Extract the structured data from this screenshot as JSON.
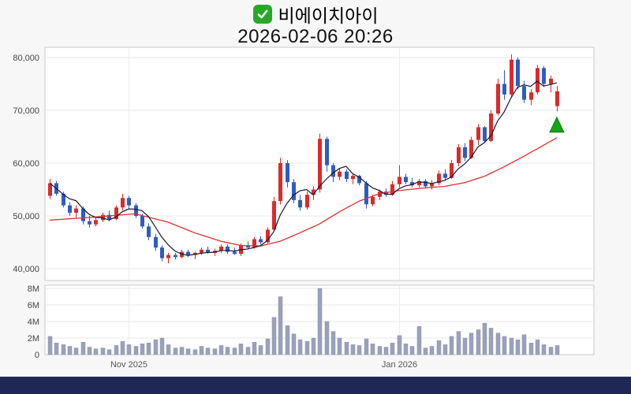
{
  "header": {
    "checkbox_checked": true,
    "title": "비에이치아이",
    "datetime": "2026-02-06 20:26"
  },
  "colors": {
    "up": "#d92b2b",
    "down": "#2d5cc2",
    "ma_short": "#16172e",
    "ma_long": "#e02f2f",
    "volume_bar": "#9aa2ba",
    "volume_bar_edge": "#8a92ab",
    "marker_fill": "#18a318",
    "marker_edge": "#0c800c",
    "grid": "#e8e8e8",
    "month_grid": "#ededed",
    "pane_border": "#c9c9c9",
    "axis_text": "#444444",
    "date_text": "#555555",
    "background": "#f7f7f8",
    "bottom_bar": "#1e2756"
  },
  "chart_data": {
    "type": "candlestick+volume",
    "title": "비에이치아이",
    "datetime": "2026-02-06 20:26",
    "price_axis": {
      "min": 40000,
      "max": 80000,
      "ticks": [
        40000,
        50000,
        60000,
        70000,
        80000
      ],
      "tick_labels": [
        "40,000",
        "50,000",
        "60,000",
        "70,000",
        "80,000"
      ]
    },
    "volume_axis": {
      "min": 0,
      "max": 8,
      "unit": "millions of shares",
      "ticks": [
        0,
        2,
        4,
        6,
        8
      ],
      "tick_labels": [
        "0",
        "2M",
        "4M",
        "6M",
        "8M"
      ]
    },
    "x_ticks": [
      {
        "index": 12,
        "label": "Nov 2025"
      },
      {
        "index": 53,
        "label": "Jan 2026"
      }
    ],
    "columns": [
      "open",
      "high",
      "low",
      "close",
      "volume_m"
    ],
    "candles": [
      [
        53800,
        57000,
        53200,
        56200,
        2.2
      ],
      [
        56200,
        56600,
        53800,
        54200,
        1.4
      ],
      [
        54200,
        54600,
        51600,
        52000,
        1.2
      ],
      [
        52000,
        52600,
        50000,
        50600,
        1.0
      ],
      [
        50600,
        52000,
        49600,
        51400,
        0.8
      ],
      [
        51400,
        51800,
        48400,
        49000,
        1.5
      ],
      [
        49000,
        50000,
        47800,
        48400,
        0.9
      ],
      [
        48400,
        49600,
        48000,
        49200,
        0.7
      ],
      [
        49200,
        50600,
        48800,
        50200,
        0.8
      ],
      [
        50200,
        51000,
        49000,
        49400,
        0.6
      ],
      [
        49400,
        52000,
        49200,
        51600,
        1.1
      ],
      [
        51600,
        54200,
        51000,
        53400,
        1.6
      ],
      [
        53400,
        53800,
        51400,
        52000,
        1.2
      ],
      [
        52000,
        52400,
        49600,
        50000,
        1.0
      ],
      [
        50000,
        50400,
        47600,
        48000,
        1.3
      ],
      [
        48000,
        48600,
        45400,
        46000,
        1.4
      ],
      [
        46000,
        46600,
        43400,
        44000,
        1.8
      ],
      [
        44000,
        44400,
        41400,
        42000,
        2.0
      ],
      [
        42000,
        43000,
        41000,
        42600,
        1.2
      ],
      [
        42600,
        43000,
        41800,
        42200,
        0.8
      ],
      [
        42200,
        43600,
        42000,
        43200,
        0.9
      ],
      [
        43200,
        43600,
        42200,
        42600,
        0.7
      ],
      [
        42600,
        43200,
        41800,
        43000,
        0.6
      ],
      [
        43000,
        44000,
        42600,
        43600,
        1.0
      ],
      [
        43600,
        44200,
        42800,
        43000,
        0.8
      ],
      [
        43000,
        43800,
        42400,
        43400,
        0.7
      ],
      [
        43400,
        44600,
        43000,
        44200,
        1.1
      ],
      [
        44200,
        44600,
        42800,
        43200,
        0.9
      ],
      [
        43200,
        44000,
        42600,
        42800,
        0.8
      ],
      [
        42800,
        44800,
        42400,
        44400,
        1.3
      ],
      [
        44400,
        45200,
        43800,
        44000,
        0.9
      ],
      [
        44000,
        46000,
        43800,
        45600,
        1.5
      ],
      [
        45600,
        46200,
        44600,
        45000,
        1.1
      ],
      [
        45000,
        47800,
        44800,
        47400,
        1.9
      ],
      [
        47400,
        53600,
        47000,
        52800,
        4.5
      ],
      [
        52800,
        61000,
        52200,
        60000,
        7.0
      ],
      [
        60000,
        60600,
        55400,
        56400,
        3.5
      ],
      [
        56400,
        57000,
        52400,
        53000,
        2.5
      ],
      [
        53000,
        54000,
        51000,
        51600,
        1.8
      ],
      [
        51600,
        54600,
        51200,
        54000,
        1.6
      ],
      [
        54000,
        55600,
        53000,
        55000,
        2.0
      ],
      [
        55000,
        65600,
        54400,
        64600,
        8.0
      ],
      [
        64600,
        65000,
        58400,
        59600,
        4.0
      ],
      [
        59600,
        60000,
        56400,
        57400,
        2.8
      ],
      [
        57400,
        59000,
        56800,
        58400,
        2.0
      ],
      [
        58400,
        58800,
        56400,
        57000,
        1.5
      ],
      [
        57000,
        58000,
        56000,
        57600,
        1.2
      ],
      [
        57600,
        57800,
        55800,
        56200,
        1.1
      ],
      [
        56200,
        56600,
        51400,
        52200,
        1.9
      ],
      [
        52200,
        54000,
        51800,
        53600,
        1.3
      ],
      [
        53600,
        55000,
        53000,
        54600,
        1.0
      ],
      [
        54600,
        55200,
        53600,
        54000,
        0.9
      ],
      [
        54000,
        56600,
        53800,
        56000,
        1.4
      ],
      [
        56000,
        59600,
        55400,
        57400,
        2.3
      ],
      [
        57400,
        58000,
        56000,
        56400,
        1.3
      ],
      [
        56400,
        57200,
        55400,
        55800,
        1.0
      ],
      [
        55800,
        57000,
        55400,
        56600,
        3.4
      ],
      [
        56600,
        57000,
        55200,
        55600,
        0.8
      ],
      [
        55600,
        56800,
        55000,
        56200,
        1.0
      ],
      [
        56200,
        58600,
        55800,
        58000,
        1.7
      ],
      [
        58000,
        58800,
        56800,
        57200,
        1.2
      ],
      [
        57200,
        60600,
        57000,
        60000,
        2.2
      ],
      [
        60000,
        63600,
        59400,
        63000,
        2.8
      ],
      [
        63000,
        63800,
        60400,
        61000,
        2.0
      ],
      [
        61000,
        65000,
        60800,
        64400,
        2.6
      ],
      [
        64400,
        67400,
        63400,
        66800,
        3.0
      ],
      [
        66800,
        67000,
        63800,
        64200,
        3.8
      ],
      [
        64200,
        70000,
        64000,
        69400,
        3.2
      ],
      [
        69400,
        76000,
        69000,
        75000,
        2.6
      ],
      [
        75000,
        77600,
        72000,
        73000,
        2.2
      ],
      [
        73000,
        80600,
        72400,
        79600,
        2.0
      ],
      [
        79600,
        80000,
        74000,
        74600,
        1.8
      ],
      [
        74600,
        75600,
        71400,
        72000,
        2.4
      ],
      [
        72000,
        74000,
        71000,
        73400,
        1.4
      ],
      [
        73400,
        78600,
        73000,
        78000,
        1.8
      ],
      [
        78000,
        78400,
        74400,
        75000,
        1.2
      ],
      [
        75000,
        76600,
        73400,
        76000,
        0.9
      ],
      [
        70800,
        74600,
        69800,
        73600,
        1.1
      ]
    ],
    "ma_short_period": 5,
    "ma_long_points": [
      [
        0,
        49200
      ],
      [
        6,
        49700
      ],
      [
        13,
        50400
      ],
      [
        18,
        48800
      ],
      [
        22,
        46800
      ],
      [
        26,
        45200
      ],
      [
        29,
        44400
      ],
      [
        32,
        44300
      ],
      [
        35,
        45200
      ],
      [
        38,
        46800
      ],
      [
        41,
        48500
      ],
      [
        44,
        50800
      ],
      [
        47,
        52800
      ],
      [
        50,
        54200
      ],
      [
        53,
        54800
      ],
      [
        57,
        55300
      ],
      [
        60,
        55600
      ],
      [
        63,
        56300
      ],
      [
        66,
        57500
      ],
      [
        69,
        59300
      ],
      [
        72,
        61300
      ],
      [
        75,
        63400
      ],
      [
        77,
        64800
      ]
    ],
    "marker": {
      "type": "up-triangle",
      "index": 77,
      "value": 67200
    }
  }
}
